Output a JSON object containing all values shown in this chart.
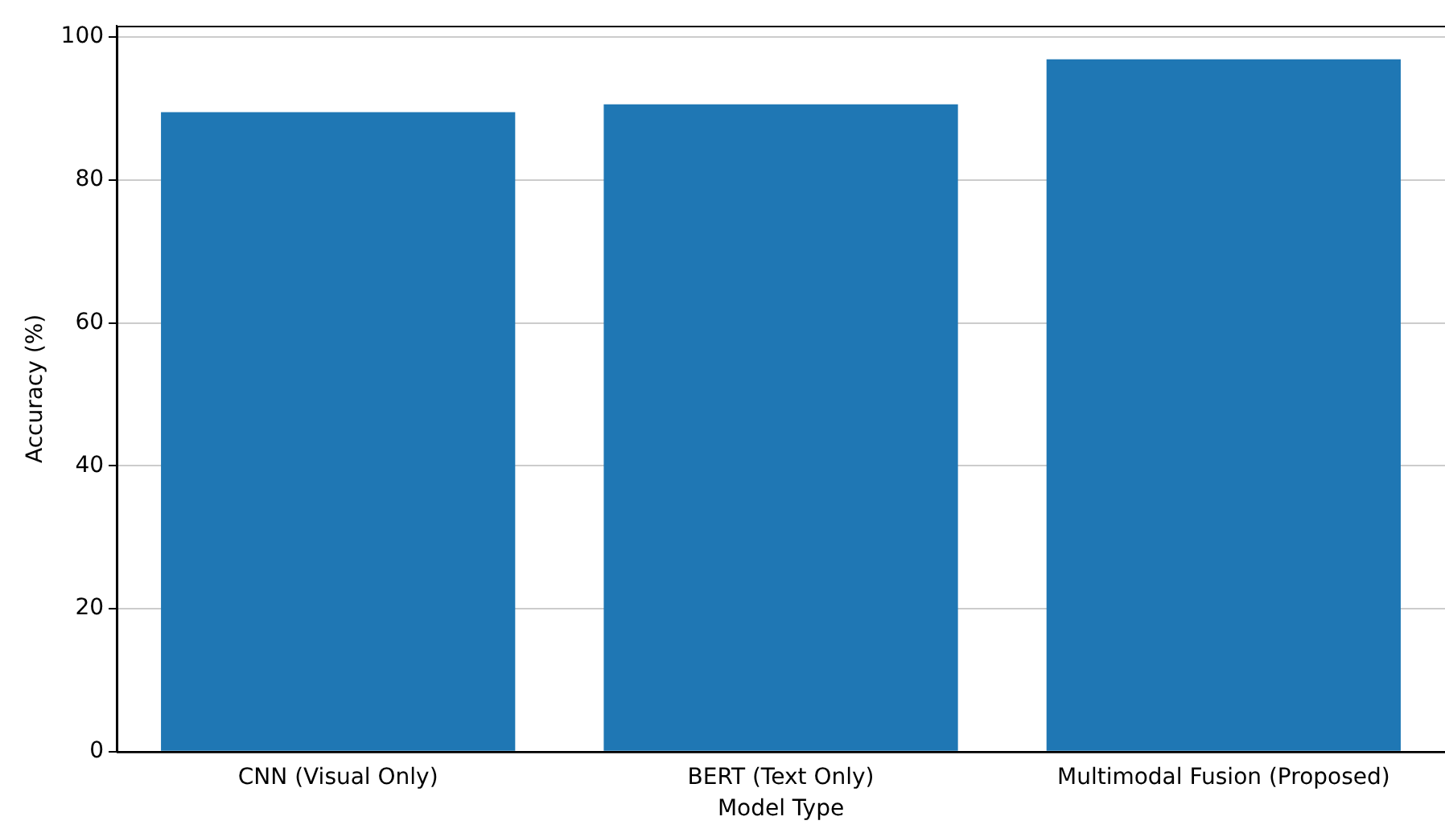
{
  "chart_data": {
    "type": "bar",
    "xlabel": "Model Type",
    "ylabel": "Accuracy (%)",
    "categories": [
      "CNN (Visual Only)",
      "BERT (Text Only)",
      "Multimodal Fusion (Proposed)"
    ],
    "values": [
      89.5,
      90.6,
      96.9
    ],
    "color": "#1f77b4",
    "ylim": [
      0,
      101.6
    ],
    "yticks": [
      0,
      20,
      40,
      60,
      80,
      100
    ],
    "grid": "y",
    "legend": false
  }
}
